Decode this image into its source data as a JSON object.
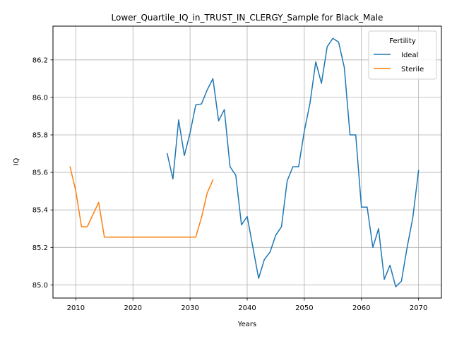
{
  "chart_data": {
    "type": "line",
    "title": "Lower_Quartile_IQ_in_TRUST_IN_CLERGY_Sample for Black_Male",
    "xlabel": "Years",
    "ylabel": "IQ",
    "xlim": [
      2006,
      2074
    ],
    "ylim": [
      84.93,
      86.38
    ],
    "xticks": [
      2010,
      2020,
      2030,
      2040,
      2050,
      2060,
      2070
    ],
    "yticks": [
      85.0,
      85.2,
      85.4,
      85.6,
      85.8,
      86.0,
      86.2
    ],
    "ytick_labels": [
      "85.0",
      "85.2",
      "85.4",
      "85.6",
      "85.8",
      "86.0",
      "86.2"
    ],
    "grid": true,
    "legend": {
      "title": "Fertility",
      "placement": "top-right"
    },
    "series": [
      {
        "name": "Ideal",
        "color": "#1f77b4",
        "x": [
          2026,
          2027,
          2028,
          2029,
          2030,
          2031,
          2032,
          2033,
          2034,
          2035,
          2036,
          2037,
          2038,
          2039,
          2040,
          2041,
          2042,
          2043,
          2044,
          2045,
          2046,
          2047,
          2048,
          2049,
          2050,
          2051,
          2052,
          2053,
          2054,
          2055,
          2056,
          2057,
          2058,
          2059,
          2060,
          2061,
          2062,
          2063,
          2064,
          2065,
          2066,
          2067,
          2068,
          2069,
          2070
        ],
        "y": [
          85.7,
          85.565,
          85.88,
          85.69,
          85.81,
          85.96,
          85.965,
          86.04,
          86.1,
          85.875,
          85.935,
          85.63,
          85.585,
          85.32,
          85.365,
          85.2,
          85.035,
          85.135,
          85.175,
          85.265,
          85.31,
          85.555,
          85.63,
          85.63,
          85.82,
          85.97,
          86.19,
          86.075,
          86.27,
          86.315,
          86.295,
          86.16,
          85.8,
          85.8,
          85.415,
          85.415,
          85.2,
          85.3,
          85.03,
          85.105,
          84.99,
          85.02,
          85.2,
          85.36,
          85.61
        ]
      },
      {
        "name": "Sterile",
        "color": "#ff7f0e",
        "x": [
          2009,
          2010,
          2011,
          2012,
          2013,
          2014,
          2015,
          2016,
          2017,
          2018,
          2019,
          2020,
          2021,
          2022,
          2023,
          2024,
          2025,
          2026,
          2027,
          2028,
          2029,
          2030,
          2031,
          2032,
          2033,
          2034
        ],
        "y": [
          85.63,
          85.5,
          85.31,
          85.31,
          85.375,
          85.44,
          85.255,
          85.255,
          85.255,
          85.255,
          85.255,
          85.255,
          85.255,
          85.255,
          85.255,
          85.255,
          85.255,
          85.255,
          85.255,
          85.255,
          85.255,
          85.255,
          85.255,
          85.36,
          85.49,
          85.56
        ]
      }
    ]
  }
}
